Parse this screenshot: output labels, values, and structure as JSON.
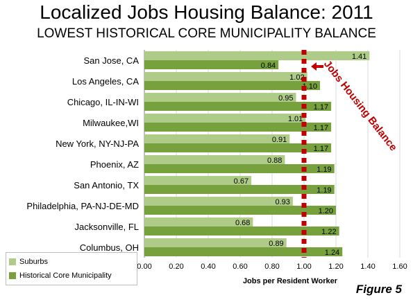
{
  "title": "Localized Jobs Housing Balance: 2011",
  "subtitle": "LOWEST HISTORICAL CORE MUNICIPALITY BALANCE",
  "figure_label": "Figure 5",
  "chart_data": {
    "type": "bar",
    "orientation": "horizontal",
    "categories": [
      "San Jose, CA",
      "Los Angeles, CA",
      "Chicago, IL-IN-WI",
      "Milwaukee,WI",
      "New York, NY-NJ-PA",
      "Phoenix, AZ",
      "San Antonio, TX",
      "Philadelphia, PA-NJ-DE-MD",
      "Jacksonville, FL",
      "Columbus, OH"
    ],
    "series": [
      {
        "name": "Suburbs",
        "color": "#aecb87",
        "values": [
          1.41,
          1.02,
          0.95,
          1.01,
          0.91,
          0.88,
          0.67,
          0.93,
          0.68,
          0.89
        ]
      },
      {
        "name": "Historical Core Municipality",
        "color": "#76a13c",
        "values": [
          0.84,
          1.1,
          1.17,
          1.17,
          1.17,
          1.19,
          1.19,
          1.2,
          1.22,
          1.24
        ]
      }
    ],
    "xlabel": "Jobs per Resident Worker",
    "xlim": [
      0,
      1.6
    ],
    "xticks": [
      "0.00",
      "0.20",
      "0.40",
      "0.60",
      "0.80",
      "1.00",
      "1.20",
      "1.40",
      "1.60"
    ],
    "grid": "vertical",
    "reference_line": {
      "value": 1.0,
      "label": "Jobs Housing Balance",
      "color": "#c00000"
    },
    "legend": "bottom-left"
  }
}
